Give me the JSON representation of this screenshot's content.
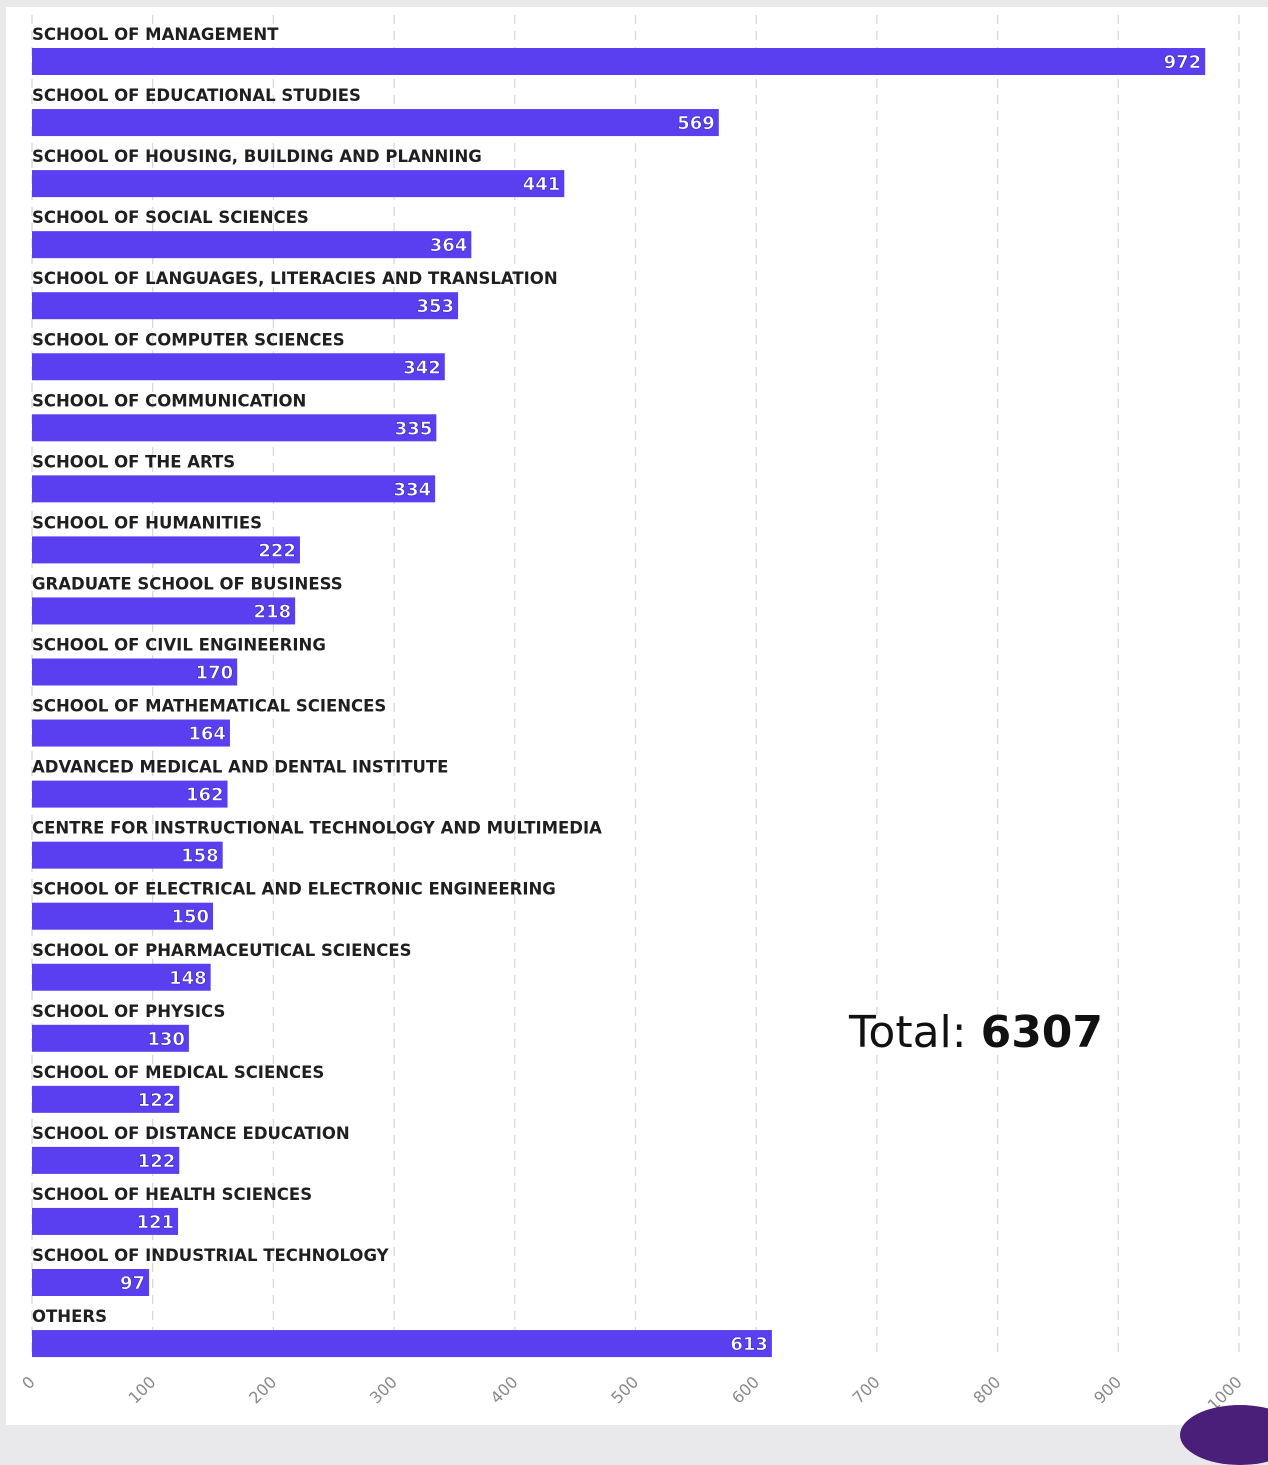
{
  "chart_data": {
    "type": "bar",
    "orientation": "horizontal",
    "categories": [
      "SCHOOL OF MANAGEMENT",
      "SCHOOL OF EDUCATIONAL STUDIES",
      "SCHOOL OF HOUSING, BUILDING AND PLANNING",
      "SCHOOL OF SOCIAL SCIENCES",
      "SCHOOL OF LANGUAGES, LITERACIES AND TRANSLATION",
      "SCHOOL OF COMPUTER SCIENCES",
      "SCHOOL OF COMMUNICATION",
      "SCHOOL OF THE ARTS",
      "SCHOOL OF HUMANITIES",
      "GRADUATE SCHOOL OF BUSINESS",
      "SCHOOL OF CIVIL ENGINEERING",
      "SCHOOL OF MATHEMATICAL SCIENCES",
      "ADVANCED MEDICAL AND DENTAL INSTITUTE",
      "CENTRE FOR INSTRUCTIONAL TECHNOLOGY AND MULTIMEDIA",
      "SCHOOL OF ELECTRICAL AND ELECTRONIC ENGINEERING",
      "SCHOOL OF PHARMACEUTICAL SCIENCES",
      "SCHOOL OF PHYSICS",
      "SCHOOL OF MEDICAL SCIENCES",
      "SCHOOL OF DISTANCE EDUCATION",
      "SCHOOL OF HEALTH SCIENCES",
      "SCHOOL OF INDUSTRIAL TECHNOLOGY",
      "OTHERS"
    ],
    "values": [
      972,
      569,
      441,
      364,
      353,
      342,
      335,
      334,
      222,
      218,
      170,
      164,
      162,
      158,
      150,
      148,
      130,
      122,
      122,
      121,
      97,
      613
    ],
    "xlim": [
      0,
      1000
    ],
    "xticks": [
      "0",
      "100",
      "200",
      "300",
      "400",
      "500",
      "600",
      "700",
      "800",
      "900",
      "1000"
    ],
    "grid": true,
    "bar_color": "#5a3ff0",
    "xlabel": "",
    "ylabel": ""
  },
  "total": {
    "label": "Total: ",
    "value": "6307"
  }
}
